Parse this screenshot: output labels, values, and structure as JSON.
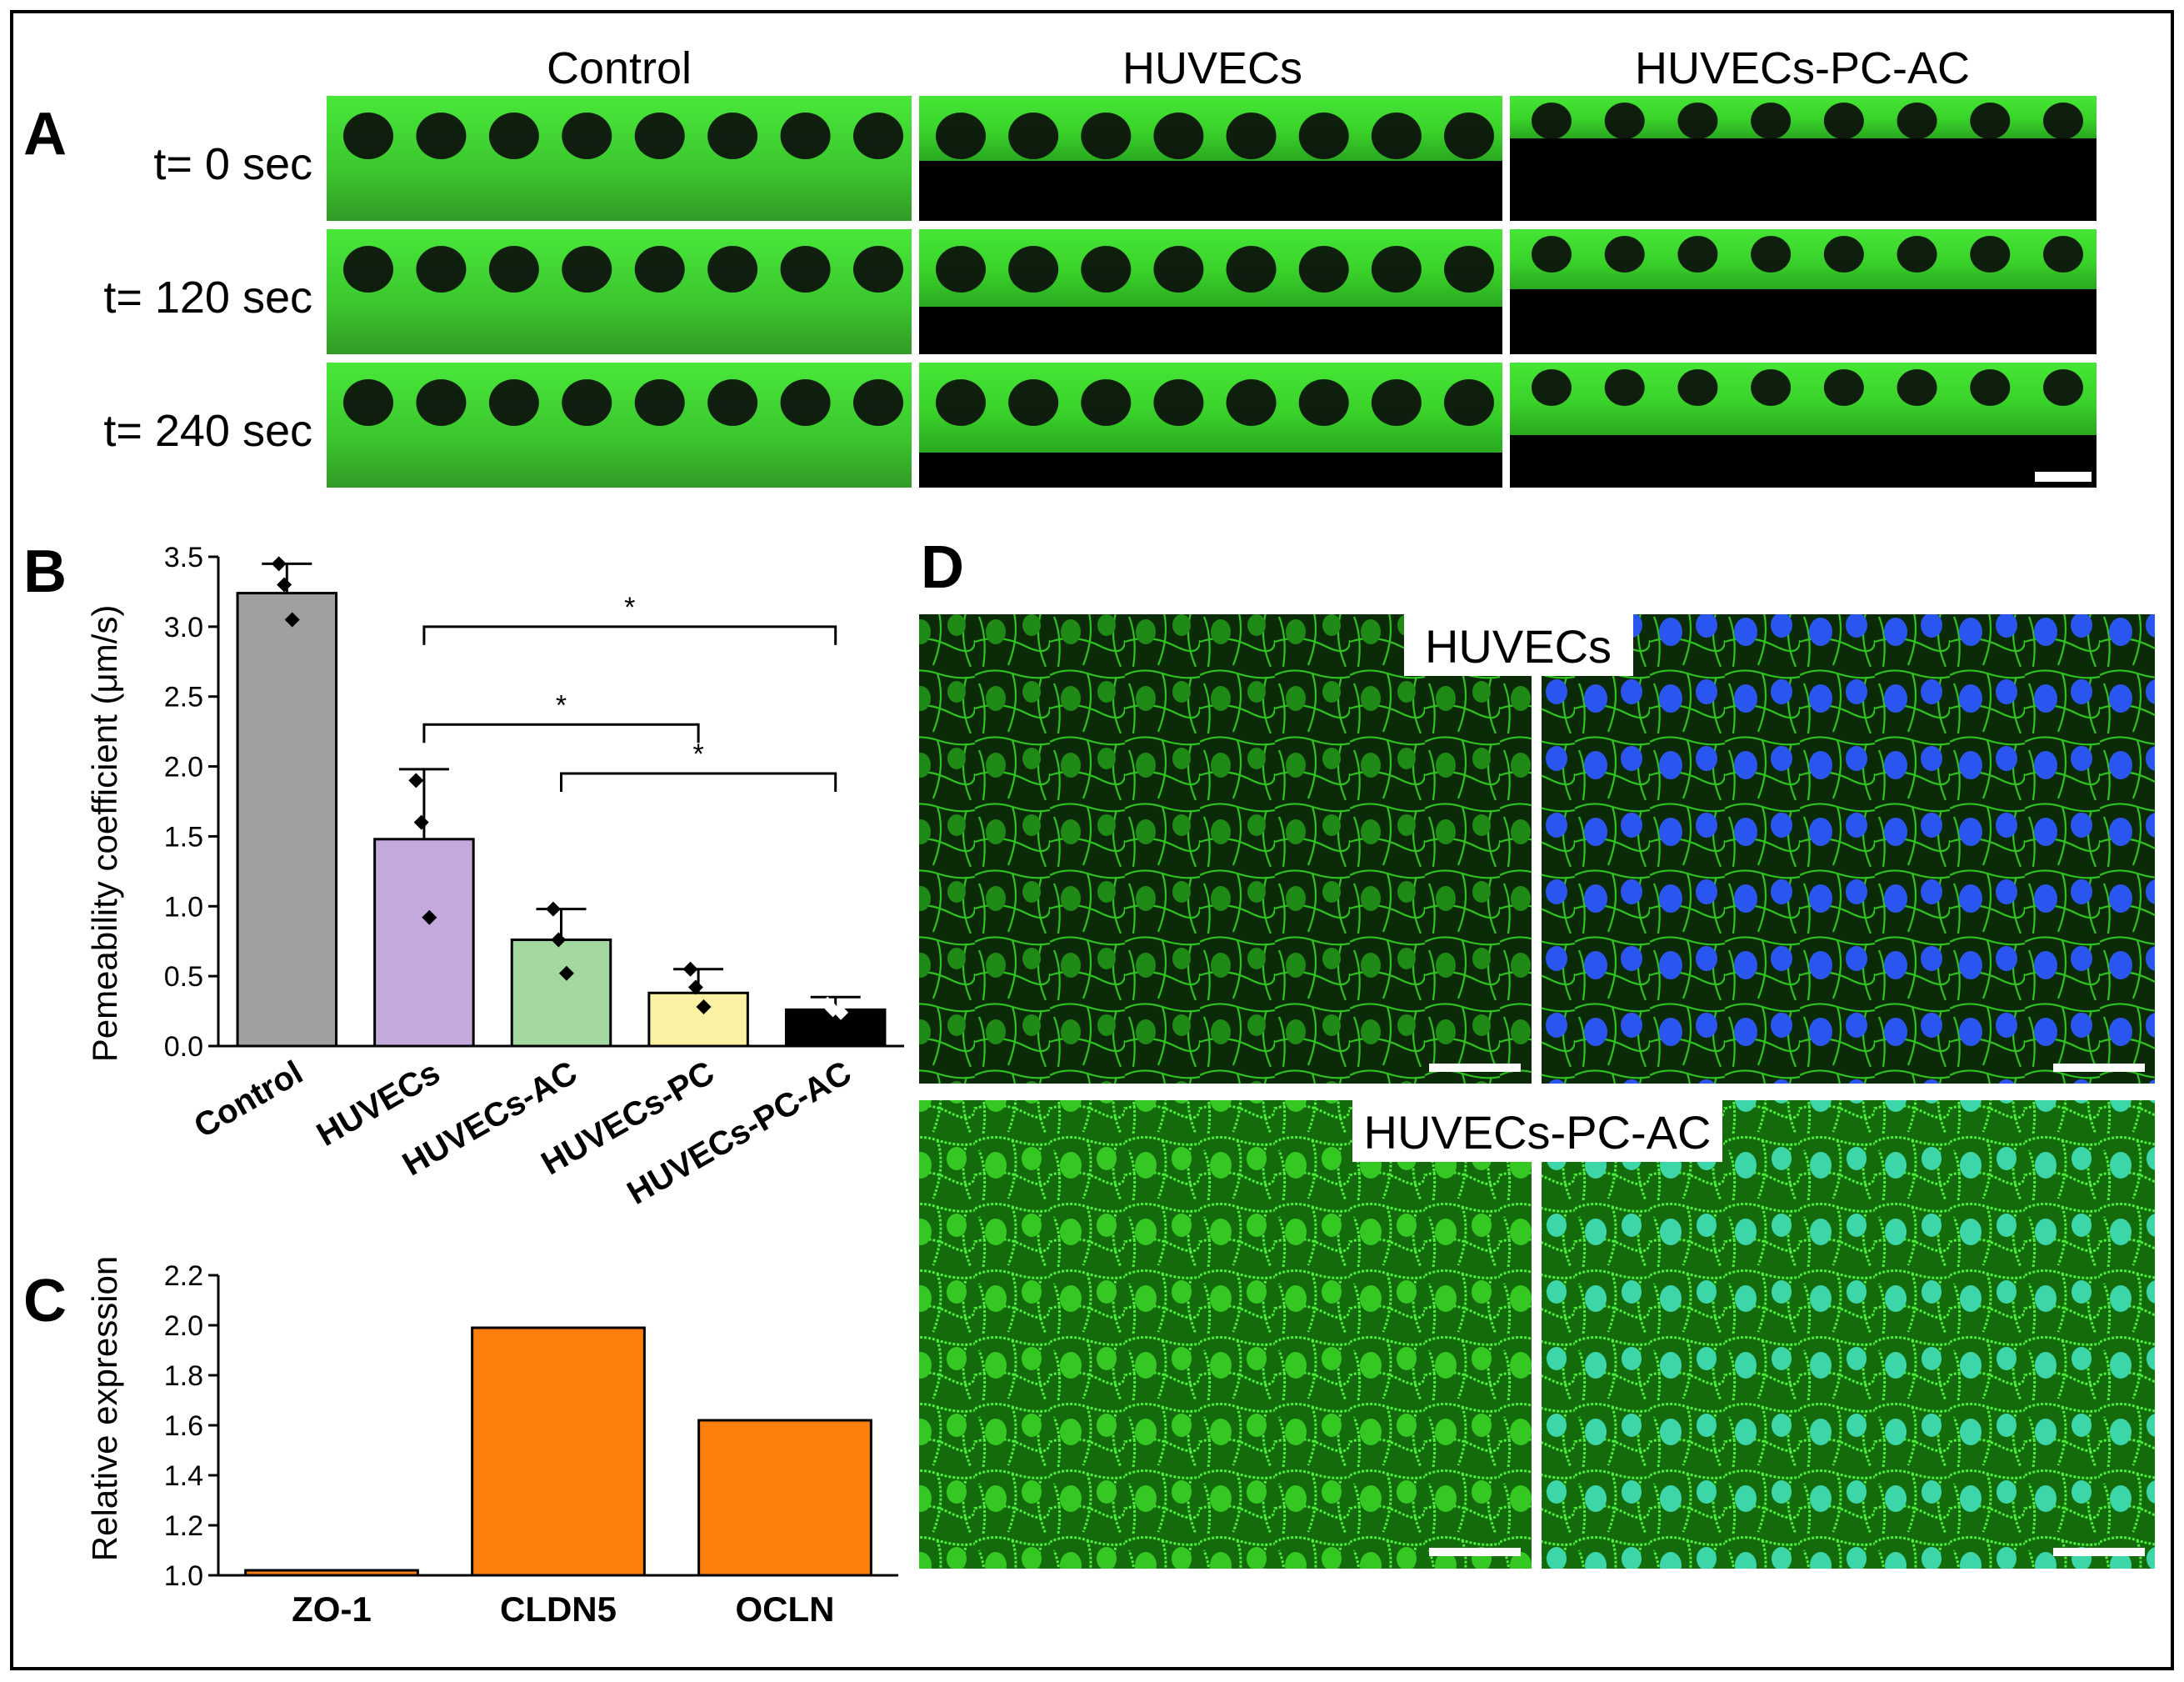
{
  "panel_letters": {
    "a": "A",
    "b": "B",
    "c": "C",
    "d": "D"
  },
  "panel_a": {
    "columns": [
      "Control",
      "HUVECs",
      "HUVECs-PC-AC"
    ],
    "rows": [
      "t= 0 sec",
      "t= 120 sec",
      "t= 240 sec"
    ],
    "colors": {
      "dye": "#3ee02a",
      "dark": "#000000"
    }
  },
  "panel_d": {
    "labels": [
      "HUVECs",
      "HUVECs-PC-AC"
    ],
    "colors": {
      "membrane": "#2fbf1f",
      "nuclei": "#2a55f0",
      "background": "#0a1a08"
    }
  },
  "chart_data": [
    {
      "type": "bar",
      "panel": "B",
      "ylabel": "Pemeability coefficient (μm/s)",
      "xlabel": "",
      "ylim": [
        0,
        3.5
      ],
      "yticks": [
        "0.0",
        "0.5",
        "1.0",
        "1.5",
        "2.0",
        "2.5",
        "3.0",
        "3.5"
      ],
      "categories": [
        "Control",
        "HUVECs",
        "HUVECs-AC",
        "HUVECs-PC",
        "HUVECs-PC-AC"
      ],
      "values": [
        3.24,
        1.48,
        0.76,
        0.38,
        0.26
      ],
      "error_upper": [
        3.45,
        1.98,
        0.98,
        0.55,
        0.35
      ],
      "points": [
        [
          3.45,
          3.3,
          3.05
        ],
        [
          1.9,
          1.6,
          0.92
        ],
        [
          0.98,
          0.76,
          0.52
        ],
        [
          0.55,
          0.42,
          0.28
        ],
        [
          0.3,
          0.26,
          0.24
        ]
      ],
      "colors": [
        "#a0a0a0",
        "#c4a9dc",
        "#a3d8a0",
        "#fbf1a2",
        "#000000"
      ],
      "significance": [
        {
          "from": "HUVECs",
          "to": "HUVECs-PC-AC",
          "label": "*"
        },
        {
          "from": "HUVECs",
          "to": "HUVECs-PC",
          "label": "*"
        },
        {
          "from": "HUVECs-AC",
          "to": "HUVECs-PC-AC",
          "label": "*"
        }
      ]
    },
    {
      "type": "bar",
      "panel": "C",
      "ylabel": "Relative expression",
      "xlabel": "",
      "ylim": [
        1.0,
        2.2
      ],
      "yticks": [
        "1.0",
        "1.2",
        "1.4",
        "1.6",
        "1.8",
        "2.0",
        "2.2"
      ],
      "categories": [
        "ZO-1",
        "CLDN5",
        "OCLN"
      ],
      "values": [
        1.02,
        1.99,
        1.62
      ],
      "colors": [
        "#ff7f0e",
        "#ff7f0e",
        "#ff7f0e"
      ]
    }
  ]
}
